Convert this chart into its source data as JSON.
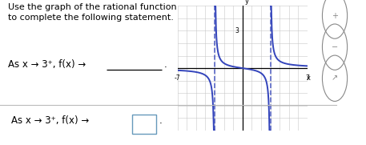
{
  "title_text": "Use the graph of the rational function\nto complete the following statement.",
  "background_color": "#ffffff",
  "text_color": "#000000",
  "graph_xlim": [
    -7,
    7
  ],
  "graph_ylim": [
    -5,
    5
  ],
  "curve_color": "#3344bb",
  "asymptote_color": "#3344bb",
  "grid_color": "#c8c8c8",
  "divider_color": "#bbbbbb",
  "box_color": "#6699bb",
  "icon_color": "#888888"
}
